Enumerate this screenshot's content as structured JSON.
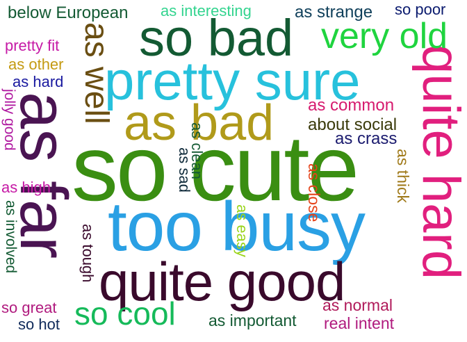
{
  "words": [
    {
      "text": "so cute",
      "color": "#3a8e12"
    },
    {
      "text": "too busy",
      "color": "#2aa0e4"
    },
    {
      "text": "as far",
      "color": "#4a1452"
    },
    {
      "text": "quite good",
      "color": "#3a0a2c"
    },
    {
      "text": "quite hard",
      "color": "#e11f7e"
    },
    {
      "text": "pretty sure",
      "color": "#27c1dc"
    },
    {
      "text": "so bad",
      "color": "#135a33"
    },
    {
      "text": "as bad",
      "color": "#b09a1a"
    },
    {
      "text": "very old",
      "color": "#1fd43f"
    },
    {
      "text": "as well",
      "color": "#6a4e12"
    },
    {
      "text": "so cool",
      "color": "#16ba5a"
    },
    {
      "text": "below European",
      "color": "#135a33"
    },
    {
      "text": "as interesting",
      "color": "#33d48f"
    },
    {
      "text": "as strange",
      "color": "#0f3f5a"
    },
    {
      "text": "so poor",
      "color": "#0a1a6e"
    },
    {
      "text": "pretty fit",
      "color": "#c61aa6"
    },
    {
      "text": "as other",
      "color": "#c49a12"
    },
    {
      "text": "as hard",
      "color": "#1a1aa0"
    },
    {
      "text": "jolly good",
      "color": "#b01aa0"
    },
    {
      "text": "as high",
      "color": "#c61aa6"
    },
    {
      "text": "as involved",
      "color": "#135a33"
    },
    {
      "text": "so great",
      "color": "#b01a7e"
    },
    {
      "text": "so hot",
      "color": "#0f2a5a"
    },
    {
      "text": "as common",
      "color": "#d61a6e"
    },
    {
      "text": "about social",
      "color": "#3a3a0a"
    },
    {
      "text": "as crass",
      "color": "#1a1a6e"
    },
    {
      "text": "as clean",
      "color": "#135a33"
    },
    {
      "text": "as sad",
      "color": "#0f2a3a"
    },
    {
      "text": "as close",
      "color": "#e5431a"
    },
    {
      "text": "as thick",
      "color": "#a07a1a"
    },
    {
      "text": "as easy",
      "color": "#9ad41a"
    },
    {
      "text": "as tough",
      "color": "#3a0a2c"
    },
    {
      "text": "as normal",
      "color": "#b01a5a"
    },
    {
      "text": "real intent",
      "color": "#b01a7e"
    },
    {
      "text": "as important",
      "color": "#135a33"
    }
  ]
}
